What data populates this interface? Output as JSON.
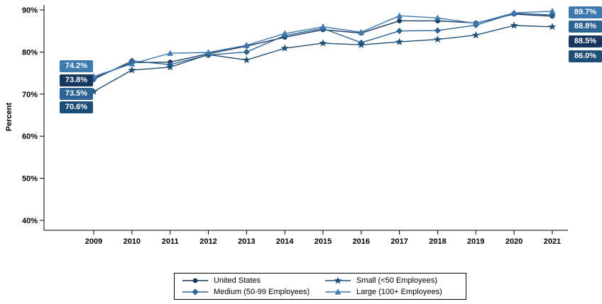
{
  "figure": {
    "background": "#ffffff",
    "axis_color": "#000000",
    "text_color": "#000000"
  },
  "chart_data": {
    "type": "line",
    "title": "",
    "xlabel": "",
    "ylabel": "Percent",
    "legend_position": "bottom",
    "grid": false,
    "ylim": [
      38,
      91
    ],
    "yticks": [
      40,
      50,
      60,
      70,
      80,
      90
    ],
    "ytick_labels": [
      "40%",
      "50%",
      "60%",
      "70%",
      "80%",
      "90%"
    ],
    "x": [
      "2009",
      "2010",
      "2011",
      "2012",
      "2013",
      "2014",
      "2015",
      "2016",
      "2017",
      "2018",
      "2019",
      "2020",
      "2021"
    ],
    "series": [
      {
        "name": "United States",
        "marker": "circle",
        "color": "#17375e",
        "values": [
          73.8,
          77.5,
          77.6,
          79.6,
          81.4,
          83.5,
          85.3,
          84.5,
          87.4,
          87.4,
          86.9,
          89.0,
          88.5
        ],
        "start_label": "73.8%",
        "end_label": "88.5%"
      },
      {
        "name": "Medium (50-99 Employees)",
        "marker": "diamond",
        "color": "#2c6395",
        "values": [
          73.5,
          77.9,
          77.0,
          79.3,
          80.0,
          83.9,
          85.6,
          82.2,
          85.0,
          85.1,
          86.4,
          89.2,
          88.8
        ],
        "start_label": "73.5%",
        "end_label": "88.8%"
      },
      {
        "name": "Small (<50 Employees)",
        "marker": "star",
        "color": "#1d4f76",
        "values": [
          70.6,
          75.7,
          76.4,
          79.4,
          78.1,
          80.9,
          82.1,
          81.7,
          82.4,
          83.0,
          84.0,
          86.3,
          86.0
        ],
        "start_label": "70.6%",
        "end_label": "86.0%"
      },
      {
        "name": "Large (100+ Employees)",
        "marker": "triangle",
        "color": "#3d7ab0",
        "values": [
          74.2,
          77.2,
          79.7,
          79.9,
          81.6,
          84.4,
          86.0,
          84.7,
          88.6,
          88.1,
          86.8,
          89.3,
          89.7
        ],
        "start_label": "74.2%",
        "end_label": "89.7%"
      }
    ],
    "edge_labels": {
      "start": [
        {
          "text": "74.2%",
          "series_index": 3
        },
        {
          "text": "73.8%",
          "series_index": 0
        },
        {
          "text": "73.5%",
          "series_index": 1
        },
        {
          "text": "70.6%",
          "series_index": 2
        }
      ],
      "end": [
        {
          "text": "89.7%",
          "series_index": 3
        },
        {
          "text": "88.8%",
          "series_index": 1
        },
        {
          "text": "88.5%",
          "series_index": 0
        },
        {
          "text": "86.0%",
          "series_index": 2
        }
      ]
    }
  },
  "legend": {
    "order_series_indexes": [
      0,
      2,
      1,
      3
    ]
  }
}
